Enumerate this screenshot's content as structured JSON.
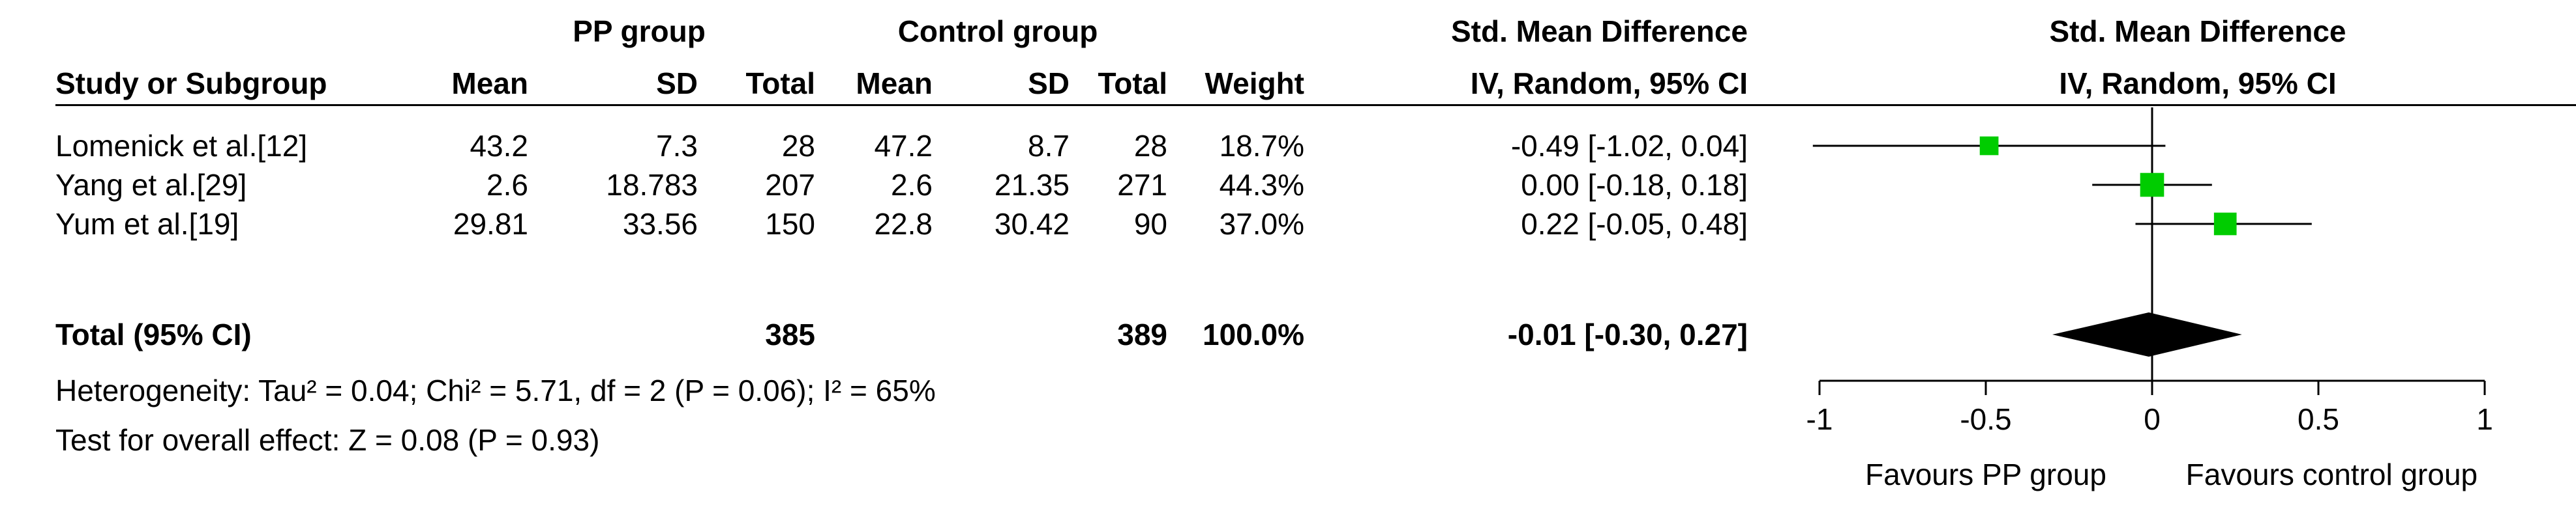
{
  "headers": {
    "group1": "PP group",
    "group2": "Control group",
    "smd": "Std. Mean Difference",
    "smd_sub": "IV, Random, 95% CI",
    "plot_title": "Std. Mean Difference",
    "plot_sub": "IV, Random, 95% CI",
    "cols": {
      "study": "Study or Subgroup",
      "mean1": "Mean",
      "sd1": "SD",
      "total1": "Total",
      "mean2": "Mean",
      "sd2": "SD",
      "total2": "Total",
      "weight": "Weight"
    }
  },
  "studies": [
    {
      "name": "Lomenick et al.[12]",
      "mean1": "43.2",
      "sd1": "7.3",
      "total1": "28",
      "mean2": "47.2",
      "sd2": "8.7",
      "total2": "28",
      "weight": "18.7%",
      "ci_text": "-0.49 [-1.02, 0.04]"
    },
    {
      "name": "Yang et al.[29]",
      "mean1": "2.6",
      "sd1": "18.783",
      "total1": "207",
      "mean2": "2.6",
      "sd2": "21.35",
      "total2": "271",
      "weight": "44.3%",
      "ci_text": "0.00 [-0.18, 0.18]"
    },
    {
      "name": "Yum et al.[19]",
      "mean1": "29.81",
      "sd1": "33.56",
      "total1": "150",
      "mean2": "22.8",
      "sd2": "30.42",
      "total2": "90",
      "weight": "37.0%",
      "ci_text": "0.22 [-0.05, 0.48]"
    }
  ],
  "total": {
    "label": "Total (95% CI)",
    "total1": "385",
    "total2": "389",
    "weight": "100.0%",
    "ci_text": "-0.01 [-0.30, 0.27]"
  },
  "heterogeneity": "Heterogeneity: Tau² = 0.04; Chi² = 5.71, df = 2 (P = 0.06); I² = 65%",
  "overall_effect": "Test for overall effect: Z = 0.08 (P = 0.93)",
  "chart_data": {
    "type": "forest",
    "xlim": [
      -1,
      1
    ],
    "x_ticks": [
      "-1",
      "-0.5",
      "0",
      "0.5",
      "1"
    ],
    "x_tick_values": [
      -1,
      -0.5,
      0,
      0.5,
      1
    ],
    "favours_left": "Favours PP group",
    "favours_right": "Favours control group",
    "points": [
      {
        "name": "Lomenick et al.[12]",
        "estimate": -0.49,
        "lower": -1.02,
        "upper": 0.04,
        "weight": 18.7
      },
      {
        "name": "Yang et al.[29]",
        "estimate": 0.0,
        "lower": -0.18,
        "upper": 0.18,
        "weight": 44.3
      },
      {
        "name": "Yum et al.[19]",
        "estimate": 0.22,
        "lower": -0.05,
        "upper": 0.48,
        "weight": 37.0
      }
    ],
    "pooled": {
      "estimate": -0.01,
      "lower": -0.3,
      "upper": 0.27
    },
    "marker_color": "#00cc00"
  }
}
